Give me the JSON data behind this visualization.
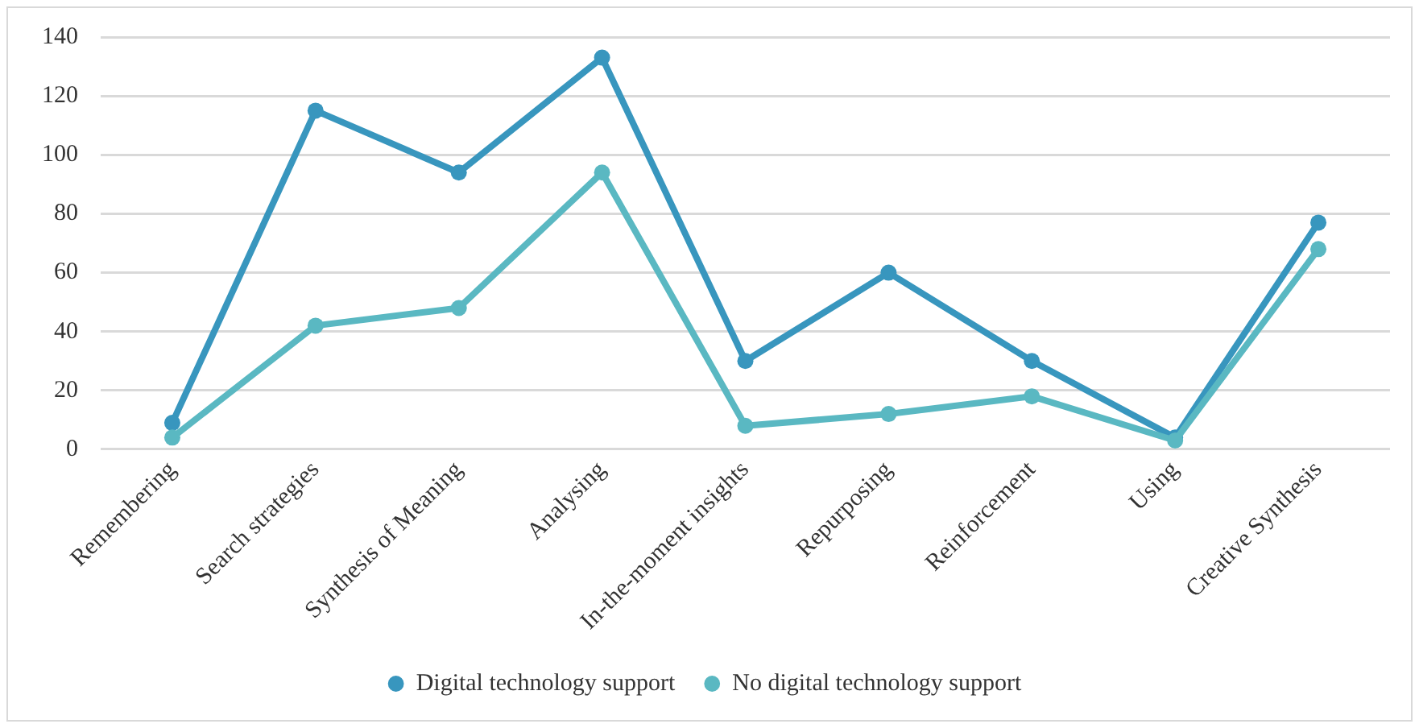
{
  "chart_data": {
    "type": "line",
    "categories": [
      "Remembering",
      "Search strategies",
      "Synthesis of Meaning",
      "Analysing",
      "In-the-moment insights",
      "Repurposing",
      "Reinforcement",
      "Using",
      "Creative Synthesis"
    ],
    "series": [
      {
        "name": "Digital technology support",
        "color": "#3896be",
        "values": [
          9,
          115,
          94,
          133,
          30,
          60,
          30,
          4,
          77
        ]
      },
      {
        "name": "No digital technology support",
        "color": "#5ab8c2",
        "values": [
          4,
          42,
          48,
          94,
          8,
          12,
          18,
          3,
          68
        ]
      }
    ],
    "ylim": [
      0,
      140
    ],
    "yticks": [
      0,
      20,
      40,
      60,
      80,
      100,
      120,
      140
    ],
    "grid": "y",
    "legend": "bottom",
    "marker": "circle",
    "line_style": "solid"
  }
}
